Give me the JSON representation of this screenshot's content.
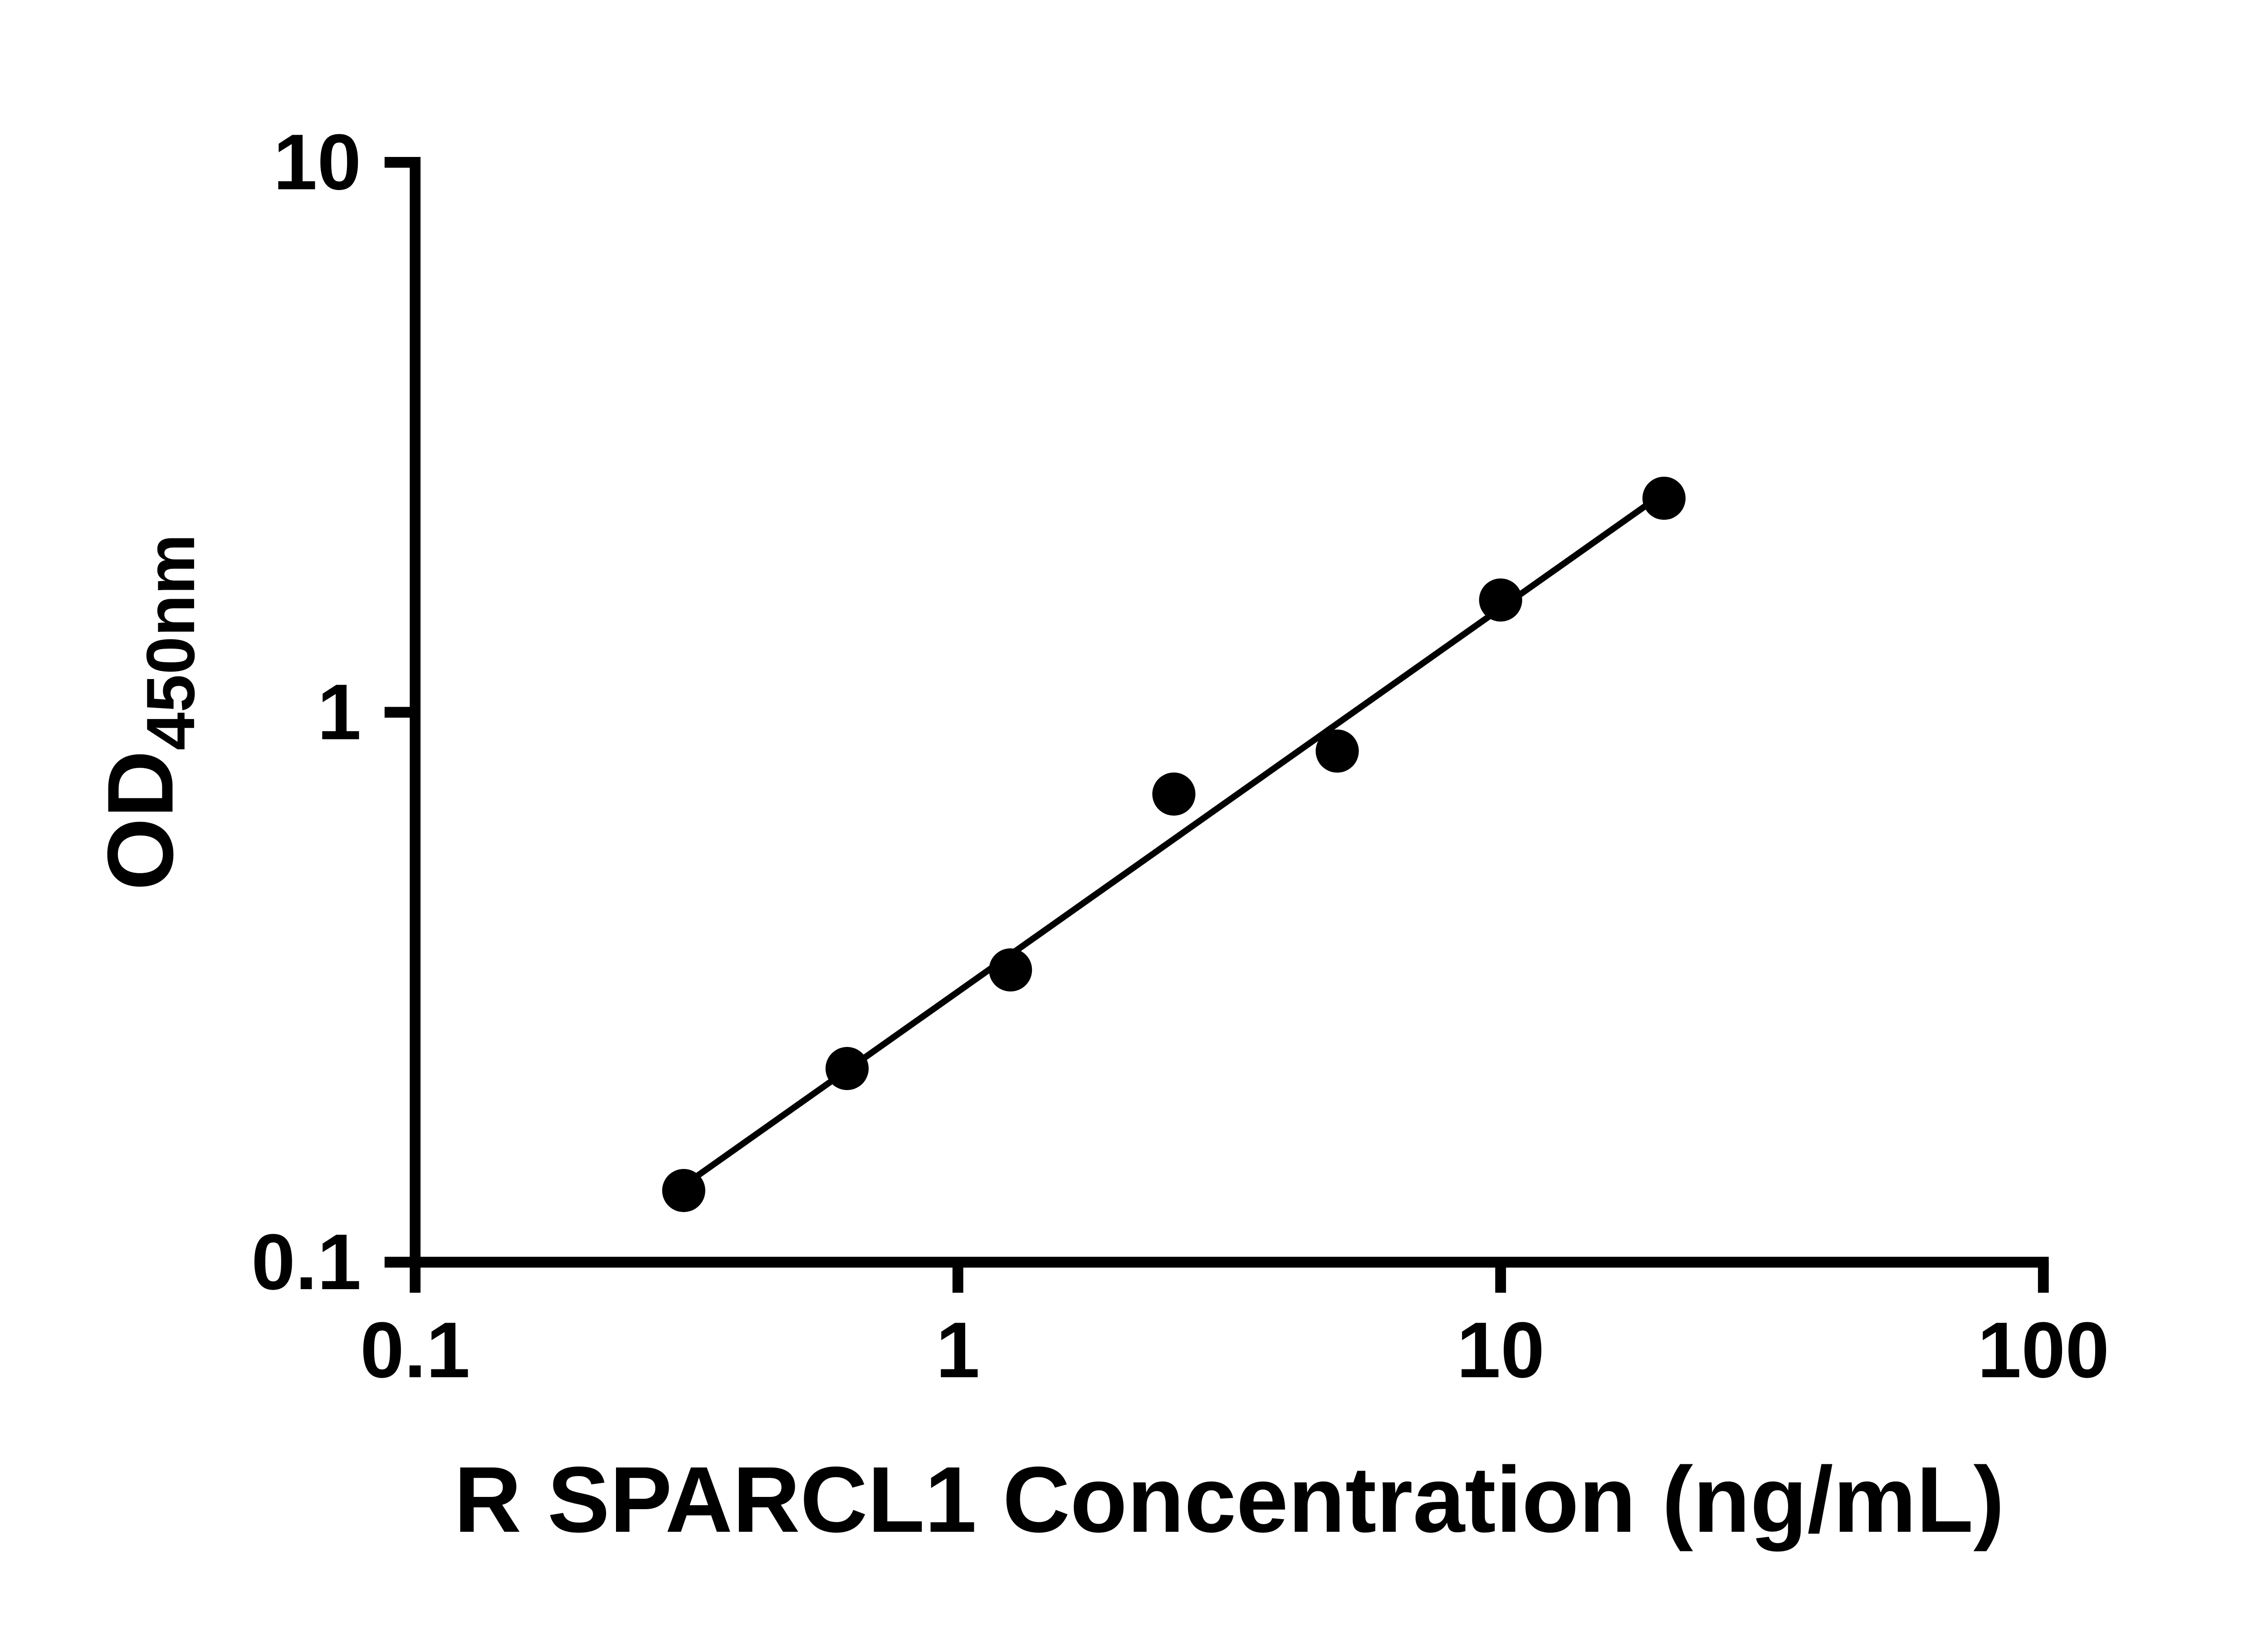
{
  "figure": {
    "background": "#ffffff"
  },
  "chart_data": {
    "type": "scatter",
    "title": "",
    "xlabel": "R SPARCL1 Concentration (ng/mL)",
    "ylabel": "OD450nm",
    "ylabel_main": "OD",
    "ylabel_sub": "450nm",
    "x_scale": "log",
    "y_scale": "log",
    "xlim": [
      0.1,
      100
    ],
    "ylim": [
      0.1,
      10
    ],
    "x_ticks": [
      "0.1",
      "1",
      "10",
      "100"
    ],
    "y_ticks": [
      "0.1",
      "1",
      "10"
    ],
    "grid": false,
    "legend": false,
    "axis_color": "#000000",
    "series": [
      {
        "name": "standard-curve-points",
        "marker": "circle",
        "marker_color": "#000000",
        "x": [
          0.3125,
          0.625,
          1.25,
          2.5,
          5,
          10,
          20
        ],
        "y": [
          0.135,
          0.225,
          0.34,
          0.71,
          0.85,
          1.6,
          2.45
        ]
      }
    ],
    "trendline": {
      "color": "#000000",
      "x": [
        0.3,
        20.5
      ],
      "y": [
        0.134,
        2.55
      ]
    }
  }
}
